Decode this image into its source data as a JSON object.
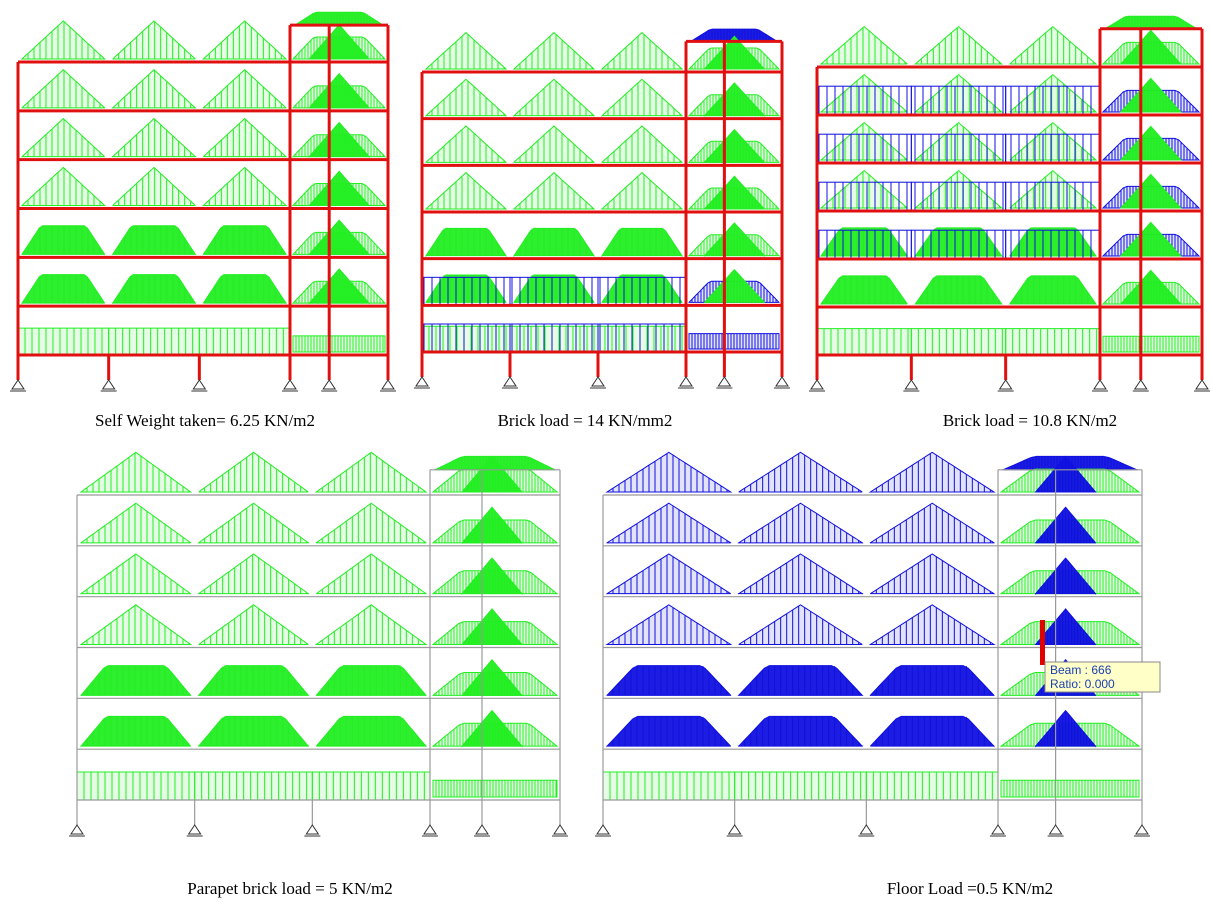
{
  "panels": [
    {
      "caption": "Self Weight taken= 6.25 KN/m2"
    },
    {
      "caption": "Brick load = 14 KN/mm2"
    },
    {
      "caption": "Brick load = 10.8 KN/m2"
    },
    {
      "caption": "Parapet brick load = 5 KN/m2"
    },
    {
      "caption": "Floor Load =0.5 KN/m2"
    }
  ],
  "tooltip": {
    "line1": "Beam : 666",
    "line2": "Ratio: 0.000"
  }
}
